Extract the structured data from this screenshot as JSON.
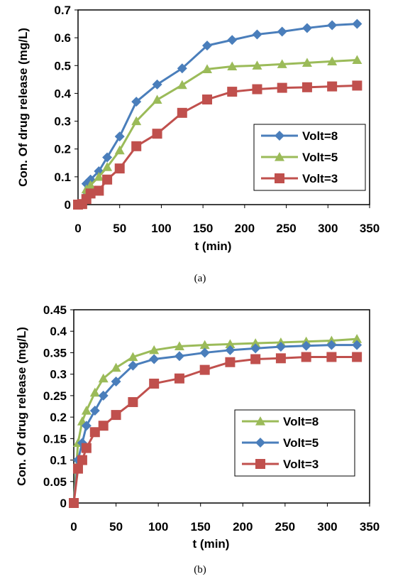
{
  "chart_data": [
    {
      "type": "line",
      "caption": "(a)",
      "xlabel": "t (min)",
      "ylabel": "Con. Of drug release (mg/L)",
      "xlim": [
        0,
        350
      ],
      "ylim": [
        0,
        0.7
      ],
      "xticks": [
        "0",
        "50",
        "100",
        "150",
        "200",
        "250",
        "300",
        "350"
      ],
      "yticks": [
        "0",
        "0.1",
        "0.2",
        "0.3",
        "0.4",
        "0.5",
        "0.6",
        "0.7"
      ],
      "grid": false,
      "legend_position": "lower-right",
      "series": [
        {
          "name": "Volt=8",
          "marker": "diamond",
          "color": "#4a7ebb",
          "x": [
            0,
            5,
            10,
            15,
            25,
            35,
            50,
            70,
            95,
            125,
            155,
            185,
            215,
            245,
            275,
            305,
            335
          ],
          "y": [
            0,
            0.003,
            0.075,
            0.09,
            0.12,
            0.17,
            0.245,
            0.37,
            0.432,
            0.49,
            0.572,
            0.592,
            0.612,
            0.622,
            0.635,
            0.645,
            0.65
          ]
        },
        {
          "name": "Volt=5",
          "marker": "triangle",
          "color": "#9bbb59",
          "x": [
            0,
            5,
            10,
            15,
            25,
            35,
            50,
            70,
            95,
            125,
            155,
            185,
            215,
            245,
            275,
            305,
            335
          ],
          "y": [
            0,
            0.003,
            0.055,
            0.07,
            0.1,
            0.135,
            0.195,
            0.3,
            0.377,
            0.43,
            0.487,
            0.497,
            0.5,
            0.505,
            0.51,
            0.515,
            0.52
          ]
        },
        {
          "name": "Volt=3",
          "marker": "square",
          "color": "#c0504d",
          "x": [
            0,
            5,
            10,
            15,
            25,
            35,
            50,
            70,
            95,
            125,
            155,
            185,
            215,
            245,
            275,
            305,
            335
          ],
          "y": [
            0,
            0.002,
            0.02,
            0.04,
            0.05,
            0.09,
            0.13,
            0.21,
            0.255,
            0.33,
            0.378,
            0.406,
            0.415,
            0.42,
            0.422,
            0.425,
            0.428
          ]
        }
      ]
    },
    {
      "type": "line",
      "caption": "(b)",
      "xlabel": "t (min)",
      "ylabel": "Con. Of drug release (mg/L)",
      "xlim": [
        0,
        350
      ],
      "ylim": [
        0,
        0.45
      ],
      "xticks": [
        "0",
        "50",
        "100",
        "150",
        "200",
        "250",
        "300",
        "350"
      ],
      "yticks": [
        "0",
        "0.05",
        "0.1",
        "0.15",
        "0.2",
        "0.25",
        "0.3",
        "0.35",
        "0.4",
        "0.45"
      ],
      "grid": false,
      "legend_position": "lower-right",
      "series": [
        {
          "name": "Volt=8",
          "marker": "triangle",
          "color": "#9bbb59",
          "x": [
            0,
            5,
            10,
            15,
            25,
            35,
            50,
            70,
            95,
            125,
            155,
            185,
            215,
            245,
            275,
            305,
            335
          ],
          "y": [
            0,
            0.14,
            0.19,
            0.215,
            0.257,
            0.29,
            0.315,
            0.34,
            0.356,
            0.365,
            0.368,
            0.37,
            0.372,
            0.374,
            0.376,
            0.378,
            0.382
          ]
        },
        {
          "name": "Volt=5",
          "marker": "diamond",
          "color": "#4a7ebb",
          "x": [
            0,
            5,
            10,
            15,
            25,
            35,
            50,
            70,
            95,
            125,
            155,
            185,
            215,
            245,
            275,
            305,
            335
          ],
          "y": [
            0,
            0.1,
            0.14,
            0.18,
            0.215,
            0.25,
            0.283,
            0.32,
            0.335,
            0.342,
            0.35,
            0.356,
            0.36,
            0.364,
            0.366,
            0.368,
            0.368
          ]
        },
        {
          "name": "Volt=3",
          "marker": "square",
          "color": "#c0504d",
          "x": [
            0,
            5,
            10,
            15,
            25,
            35,
            50,
            70,
            95,
            125,
            155,
            185,
            215,
            245,
            275,
            305,
            335
          ],
          "y": [
            0,
            0.08,
            0.1,
            0.128,
            0.165,
            0.18,
            0.205,
            0.235,
            0.278,
            0.29,
            0.31,
            0.328,
            0.335,
            0.337,
            0.34,
            0.34,
            0.34
          ]
        }
      ]
    }
  ]
}
